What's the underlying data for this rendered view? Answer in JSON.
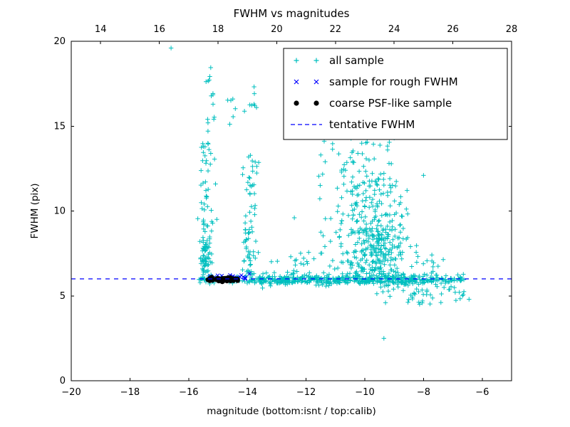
{
  "chart_data": {
    "type": "scatter",
    "title": "FWHM vs magnitudes",
    "xlabel": "magnitude (bottom:isnt / top:calib)",
    "ylabel": "FWHM (pix)",
    "xlim": [
      -20,
      -5
    ],
    "ylim": [
      0,
      20
    ],
    "grid": false,
    "seed": 20,
    "top_axis": {
      "lim": [
        13,
        28
      ]
    },
    "bottom_ticks": {
      "values": [
        -20,
        -18,
        -16,
        -14,
        -12,
        -10,
        -8,
        -6
      ],
      "labels": [
        "−20",
        "−18",
        "−16",
        "−14",
        "−12",
        "−10",
        "−8",
        "−6"
      ]
    },
    "top_ticks": {
      "values": [
        14,
        16,
        18,
        20,
        22,
        24,
        26,
        28
      ],
      "labels": [
        "14",
        "16",
        "18",
        "20",
        "22",
        "24",
        "26",
        "28"
      ]
    },
    "y_ticks": {
      "values": [
        0,
        5,
        10,
        15,
        20
      ],
      "labels": [
        "0",
        "5",
        "10",
        "15",
        "20"
      ]
    },
    "tentative_fwhm": 6.0,
    "line_color": "#0000ff",
    "legend": {
      "position": "upper right",
      "items": [
        {
          "label": "all sample",
          "marker": "plus",
          "color": "#00bfbf"
        },
        {
          "label": "sample for rough FWHM",
          "marker": "x",
          "color": "#0000ff"
        },
        {
          "label": "coarse PSF-like sample",
          "marker": "dot",
          "color": "#000000"
        },
        {
          "label": "tentative FWHM",
          "marker": "dashed-line",
          "color": "#0000ff"
        }
      ]
    },
    "series": [
      {
        "name": "all sample",
        "marker": "plus",
        "color": "#00bfbf",
        "clusters": [
          {
            "n": 320,
            "x": {
              "dist": "uniform",
              "a": -15.65,
              "b": -6.6
            },
            "y": {
              "dist": "normal",
              "mean": 5.92,
              "sd": 0.1
            }
          },
          {
            "n": 200,
            "x": {
              "dist": "uniform",
              "a": -13.6,
              "b": -7.9
            },
            "y": {
              "dist": "normal",
              "mean": 5.95,
              "sd": 0.18
            }
          },
          {
            "n": 45,
            "x": {
              "dist": "uniform",
              "a": -9.6,
              "b": -6.5
            },
            "y": {
              "dist": "uniform",
              "a": 4.5,
              "b": 5.75
            }
          },
          {
            "n": 70,
            "x": {
              "dist": "normal",
              "mean": -15.45,
              "sd": 0.1
            },
            "y": {
              "dist": "uniform",
              "a": 5.9,
              "b": 8.5
            }
          },
          {
            "n": 45,
            "x": {
              "dist": "normal",
              "mean": -15.42,
              "sd": 0.12
            },
            "y": {
              "dist": "uniform",
              "a": 8.5,
              "b": 14.2
            }
          },
          {
            "n": 14,
            "x": {
              "dist": "normal",
              "mean": -15.3,
              "sd": 0.15
            },
            "y": {
              "dist": "uniform",
              "a": 14.2,
              "b": 18.6
            }
          },
          {
            "n": 45,
            "x": {
              "dist": "normal",
              "mean": -13.95,
              "sd": 0.1
            },
            "y": {
              "dist": "uniform",
              "a": 6.0,
              "b": 9.5
            }
          },
          {
            "n": 28,
            "x": {
              "dist": "normal",
              "mean": -13.85,
              "sd": 0.12
            },
            "y": {
              "dist": "uniform",
              "a": 9.5,
              "b": 13.6
            }
          },
          {
            "n": 8,
            "x": {
              "dist": "normal",
              "mean": -13.8,
              "sd": 0.12
            },
            "y": {
              "dist": "uniform",
              "a": 15.8,
              "b": 17.6
            }
          },
          {
            "n": 6,
            "x": {
              "dist": "uniform",
              "a": -14.7,
              "b": -14.35
            },
            "y": {
              "dist": "uniform",
              "a": 15.0,
              "b": 16.6
            }
          },
          {
            "n": 260,
            "x": {
              "dist": "normal",
              "mean": -9.7,
              "sd": 0.55
            },
            "y": {
              "dist": "uniform",
              "a": 6.0,
              "b": 9.0
            }
          },
          {
            "n": 120,
            "x": {
              "dist": "normal",
              "mean": -9.8,
              "sd": 0.6
            },
            "y": {
              "dist": "uniform",
              "a": 9.0,
              "b": 12.0
            }
          },
          {
            "n": 45,
            "x": {
              "dist": "normal",
              "mean": -10.1,
              "sd": 0.7
            },
            "y": {
              "dist": "uniform",
              "a": 12.0,
              "b": 14.8
            }
          },
          {
            "n": 25,
            "x": {
              "dist": "uniform",
              "a": -11.6,
              "b": -10.6
            },
            "y": {
              "dist": "uniform",
              "a": 6.2,
              "b": 12.5
            }
          },
          {
            "n": 30,
            "x": {
              "dist": "uniform",
              "a": -13.3,
              "b": -11.6
            },
            "y": {
              "dist": "uniform",
              "a": 5.8,
              "b": 7.6
            }
          },
          {
            "n": 18,
            "x": {
              "dist": "uniform",
              "a": -8.3,
              "b": -7.2
            },
            "y": {
              "dist": "uniform",
              "a": 6.0,
              "b": 8.0
            }
          },
          {
            "n": 12,
            "x": {
              "dist": "uniform",
              "a": -7.6,
              "b": -6.6
            },
            "y": {
              "dist": "uniform",
              "a": 5.3,
              "b": 6.3
            }
          }
        ],
        "points": [
          [
            -16.6,
            19.6
          ],
          [
            -9.35,
            2.5
          ],
          [
            -6.45,
            4.8
          ],
          [
            -10.7,
            15.5
          ],
          [
            -10.25,
            15.1
          ],
          [
            -8.0,
            12.1
          ],
          [
            -11.5,
            13.3
          ],
          [
            -11.35,
            12.9
          ],
          [
            -12.4,
            9.6
          ],
          [
            -9.0,
            14.3
          ]
        ]
      },
      {
        "name": "sample for rough FWHM",
        "marker": "x",
        "color": "#0000ff",
        "clusters": [
          {
            "n": 20,
            "x": {
              "dist": "uniform",
              "a": -15.45,
              "b": -13.9
            },
            "y": {
              "dist": "normal",
              "mean": 6.12,
              "sd": 0.06
            }
          }
        ],
        "points": [
          [
            -13.93,
            6.3
          ]
        ]
      },
      {
        "name": "coarse PSF-like sample",
        "marker": "dot",
        "color": "#000000",
        "clusters": [
          {
            "n": 48,
            "x": {
              "dist": "uniform",
              "a": -15.35,
              "b": -14.3
            },
            "y": {
              "dist": "normal",
              "mean": 5.97,
              "sd": 0.06
            }
          }
        ],
        "points": []
      }
    ]
  }
}
